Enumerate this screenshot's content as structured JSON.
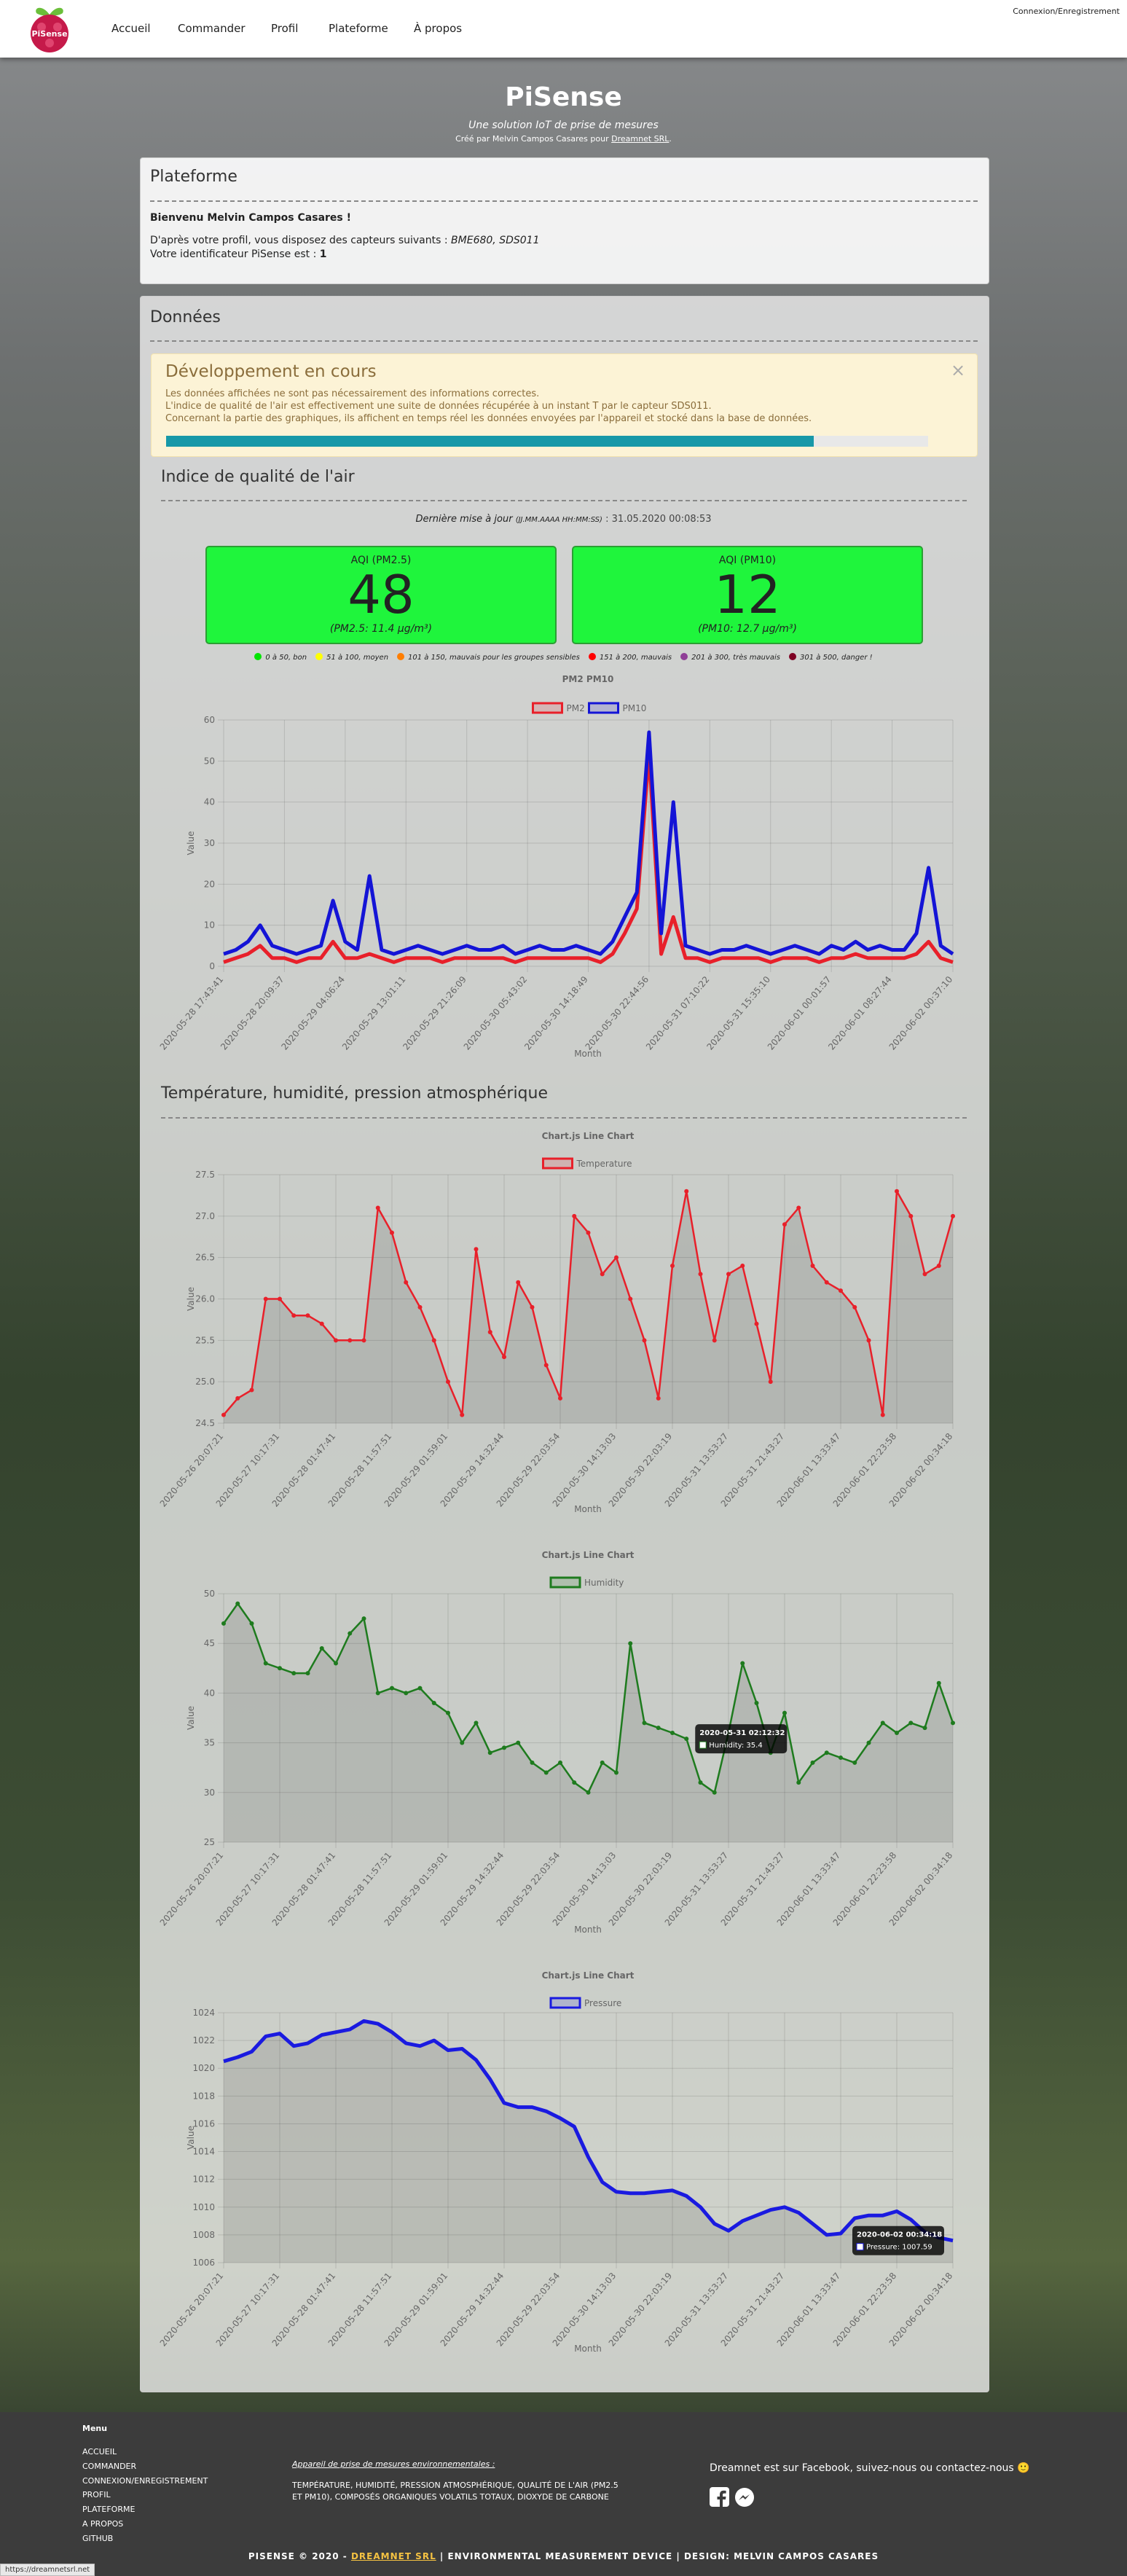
{
  "nav": {
    "logo_text": "PiSense",
    "items": [
      "Accueil",
      "Commander",
      "Profil",
      "Plateforme",
      "À propos"
    ],
    "login": "Connexion/Enregistrement"
  },
  "hero": {
    "title": "PiSense",
    "subtitle": "Une solution IoT de prise de mesures",
    "credit": "Créé par Melvin Campos Casares pour",
    "credit_link": "Dreamnet SRL",
    "credit_end": "."
  },
  "platform": {
    "title": "Plateforme",
    "welcome": "Bienvenu Melvin Campos Casares !",
    "sensors_intro": "D'après votre profil, vous disposez des capteurs suivants :",
    "sensors": "BME680, SDS011",
    "id_intro": "Votre identificateur PiSense est :",
    "id": 1
  },
  "data_panel": {
    "title": "Données",
    "alert": {
      "title": "Développement en cours",
      "close": "×",
      "progress": 85,
      "lines": [
        "Les données affichées ne sont pas nécessairement des informations correctes.",
        "L'indice de qualité de l'air est effectivement une suite de données récupérée à un instant T par le capteur SDS011.",
        "Concernant la partie des graphiques, ils affichent en temps réel les données envoyées par l'appareil et stocké dans la base de données."
      ]
    },
    "air_title": "Indice de qualité de l'air",
    "update_label": "Dernière mise à jour",
    "update_format": "(JJ.MM.AAAA HH:MM:SS)",
    "update_value": ": 31.05.2020 00:08:53",
    "aqi": [
      {
        "label": "AQI (PM2.5)",
        "value": 48,
        "detail": "(PM2.5: 11.4 µg/m³)"
      },
      {
        "label": "AQI (PM10)",
        "value": 12,
        "detail": "(PM10: 12.7 µg/m³)"
      }
    ],
    "aqi_legend": [
      {
        "label": "0 à 50, bon",
        "color": "#00e400"
      },
      {
        "label": "51 à 100, moyen",
        "color": "#ffff00"
      },
      {
        "label": "101 à 150, mauvais pour les groupes sensibles",
        "color": "#ff7e00"
      },
      {
        "label": "151 à 200, mauvais",
        "color": "#ff0000"
      },
      {
        "label": "201 à 300, très mauvais",
        "color": "#8f3f97"
      },
      {
        "label": "301 à 500, danger !",
        "color": "#7e0023"
      }
    ],
    "env_title": "Température, humidité, pression atmosphérique"
  },
  "chart_data": [
    {
      "type": "line",
      "title": "PM2 PM10",
      "x_label": "Month",
      "y_label": "Value",
      "fill": false,
      "points": false,
      "grid": true,
      "categories": [
        "2020-05-28 17:43:41",
        null,
        null,
        null,
        null,
        "2020-05-28 20:09:37",
        null,
        null,
        null,
        null,
        "2020-05-29 04:06:24",
        null,
        null,
        null,
        null,
        "2020-05-29 13:01:11",
        null,
        null,
        null,
        null,
        "2020-05-29 21:26:09",
        null,
        null,
        null,
        null,
        "2020-05-30 05:43:02",
        null,
        null,
        null,
        null,
        "2020-05-30 14:18:49",
        null,
        null,
        null,
        null,
        "2020-05-30 22:44:56",
        null,
        null,
        null,
        null,
        "2020-05-31 07:10:22",
        null,
        null,
        null,
        null,
        "2020-05-31 15:35:10",
        null,
        null,
        null,
        null,
        "2020-06-01 00:01:57",
        null,
        null,
        null,
        null,
        "2020-06-01 08:27:44",
        null,
        null,
        null,
        null,
        "2020-06-02 00:37:10"
      ],
      "series": [
        {
          "name": "PM2",
          "color": "#e8202a",
          "values": [
            1,
            2,
            3,
            5,
            2,
            2,
            1,
            2,
            2,
            6,
            2,
            2,
            3,
            2,
            1,
            2,
            2,
            2,
            1,
            2,
            2,
            2,
            2,
            2,
            1,
            2,
            2,
            2,
            2,
            2,
            2,
            1,
            3,
            8,
            14,
            52,
            3,
            12,
            2,
            2,
            1,
            2,
            2,
            2,
            2,
            1,
            2,
            2,
            2,
            1,
            2,
            2,
            3,
            2,
            2,
            2,
            2,
            3,
            6,
            2,
            1
          ]
        },
        {
          "name": "PM10",
          "color": "#1414d6",
          "values": [
            3,
            4,
            6,
            10,
            5,
            4,
            3,
            4,
            5,
            16,
            6,
            4,
            22,
            4,
            3,
            4,
            5,
            4,
            3,
            4,
            5,
            4,
            4,
            5,
            3,
            4,
            5,
            4,
            4,
            5,
            4,
            3,
            6,
            12,
            18,
            57,
            8,
            40,
            5,
            4,
            3,
            4,
            4,
            5,
            4,
            3,
            4,
            5,
            4,
            3,
            5,
            4,
            6,
            4,
            5,
            4,
            4,
            8,
            24,
            5,
            3
          ]
        }
      ],
      "ylim": [
        0,
        60
      ],
      "yticks": [
        0,
        10,
        20,
        30,
        40,
        50,
        60
      ]
    },
    {
      "type": "line",
      "title": "Chart.js Line Chart",
      "x_label": "Month",
      "y_label": "Value",
      "fill": true,
      "points": true,
      "grid": true,
      "categories": [
        "2020-05-26 20:07:21",
        null,
        null,
        null,
        "2020-05-27 10:17:31",
        null,
        null,
        null,
        "2020-05-28 01:47:41",
        null,
        null,
        null,
        "2020-05-28 11:57:51",
        null,
        null,
        null,
        "2020-05-29 01:59:01",
        null,
        null,
        null,
        "2020-05-29 14:32:44",
        null,
        null,
        null,
        "2020-05-29 22:03:54",
        null,
        null,
        null,
        "2020-05-30 14:13:03",
        null,
        null,
        null,
        "2020-05-30 22:03:19",
        null,
        null,
        null,
        "2020-05-31 13:53:27",
        null,
        null,
        null,
        "2020-05-31 21:43:27",
        null,
        null,
        null,
        "2020-06-01 13:33:47",
        null,
        null,
        null,
        "2020-06-01 22:23:58",
        null,
        null,
        null,
        "2020-06-02 00:34:18"
      ],
      "series": [
        {
          "name": "Temperature",
          "color": "#e8202a",
          "values": [
            24.6,
            24.8,
            24.9,
            26.0,
            26.0,
            25.8,
            25.8,
            25.7,
            25.5,
            25.5,
            25.5,
            27.1,
            26.8,
            26.2,
            25.9,
            25.5,
            25.0,
            24.6,
            26.6,
            25.6,
            25.3,
            26.2,
            25.9,
            25.2,
            24.8,
            27.0,
            26.8,
            26.3,
            26.5,
            26.0,
            25.5,
            24.8,
            26.4,
            27.3,
            26.3,
            25.5,
            26.3,
            26.4,
            25.7,
            25.0,
            26.9,
            27.1,
            26.4,
            26.2,
            26.1,
            25.9,
            25.5,
            24.6,
            27.3,
            27.0,
            26.3,
            26.4,
            27.0
          ]
        }
      ],
      "ylim": [
        24.5,
        27.5
      ],
      "yticks": [
        24.5,
        {
          "value": 25,
          "label": "25.0"
        },
        25.5,
        {
          "value": 26,
          "label": "26.0"
        },
        26.5,
        {
          "value": 27,
          "label": "27.0"
        },
        27.5
      ]
    },
    {
      "type": "line",
      "title": "Chart.js Line Chart",
      "x_label": "Month",
      "y_label": "Value",
      "fill": true,
      "points": true,
      "grid": true,
      "categories": [
        "2020-05-26 20:07:21",
        null,
        null,
        null,
        "2020-05-27 10:17:31",
        null,
        null,
        null,
        "2020-05-28 01:47:41",
        null,
        null,
        null,
        "2020-05-28 11:57:51",
        null,
        null,
        null,
        "2020-05-29 01:59:01",
        null,
        null,
        null,
        "2020-05-29 14:32:44",
        null,
        null,
        null,
        "2020-05-29 22:03:54",
        null,
        null,
        null,
        "2020-05-30 14:13:03",
        null,
        null,
        null,
        "2020-05-30 22:03:19",
        null,
        null,
        null,
        "2020-05-31 13:53:27",
        null,
        null,
        null,
        "2020-05-31 21:43:27",
        null,
        null,
        null,
        "2020-06-01 13:33:47",
        null,
        null,
        null,
        "2020-06-01 22:23:58",
        null,
        null,
        null,
        "2020-06-02 00:34:18"
      ],
      "series": [
        {
          "name": "Humidity",
          "color": "#1e7b1e",
          "values": [
            47,
            49,
            47,
            43,
            42.5,
            42,
            42,
            44.5,
            43,
            46,
            47.5,
            40,
            40.5,
            40,
            40.5,
            39,
            38,
            35,
            37,
            34,
            34.5,
            35,
            33,
            32,
            33,
            31,
            30,
            33,
            32,
            45,
            37,
            36.5,
            36,
            35.4,
            31,
            30,
            36,
            43,
            39,
            34,
            38,
            31,
            33,
            34,
            33.5,
            33,
            35,
            37,
            36,
            37,
            36.5,
            41,
            37
          ]
        }
      ],
      "ylim": [
        25,
        50
      ],
      "yticks": [
        25,
        30,
        35,
        40,
        45,
        50
      ],
      "tooltip": {
        "title": "2020-05-31 02:12:32",
        "label": "Humidity: 35.4"
      }
    },
    {
      "type": "line",
      "title": "Chart.js Line Chart",
      "x_label": "Month",
      "y_label": "Value",
      "fill": true,
      "points": false,
      "grid": true,
      "categories": [
        "2020-05-26 20:07:21",
        null,
        null,
        null,
        "2020-05-27 10:17:31",
        null,
        null,
        null,
        "2020-05-28 01:47:41",
        null,
        null,
        null,
        "2020-05-28 11:57:51",
        null,
        null,
        null,
        "2020-05-29 01:59:01",
        null,
        null,
        null,
        "2020-05-29 14:32:44",
        null,
        null,
        null,
        "2020-05-29 22:03:54",
        null,
        null,
        null,
        "2020-05-30 14:13:03",
        null,
        null,
        null,
        "2020-05-30 22:03:19",
        null,
        null,
        null,
        "2020-05-31 13:53:27",
        null,
        null,
        null,
        "2020-05-31 21:43:27",
        null,
        null,
        null,
        "2020-06-01 13:33:47",
        null,
        null,
        null,
        "2020-06-01 22:23:58",
        null,
        null,
        null,
        "2020-06-02 00:34:18"
      ],
      "series": [
        {
          "name": "Pressure",
          "color": "#1a1ae0",
          "values": [
            1020.5,
            1020.8,
            1021.2,
            1022.3,
            1022.5,
            1021.6,
            1021.8,
            1022.4,
            1022.6,
            1022.8,
            1023.4,
            1023.2,
            1022.6,
            1021.8,
            1021.6,
            1022,
            1021.3,
            1021.4,
            1020.6,
            1019.2,
            1017.5,
            1017.2,
            1017.2,
            1016.9,
            1016.4,
            1015.8,
            1013.6,
            1011.8,
            1011.1,
            1011,
            1011,
            1011.1,
            1011.2,
            1010.8,
            1010,
            1008.8,
            1008.3,
            1009,
            1009.4,
            1009.8,
            1010,
            1009.6,
            1008.8,
            1008,
            1008.1,
            1009.2,
            1009.4,
            1009.4,
            1009.7,
            1009.1,
            1008.2,
            1007.8,
            1007.59
          ]
        }
      ],
      "ylim": [
        1006,
        1024
      ],
      "yticks": [
        1006,
        1008,
        1010,
        1012,
        1014,
        1016,
        1018,
        1020,
        1022,
        1024
      ],
      "tooltip": {
        "title": "2020-06-02 00:34:18",
        "label": "Pressure: 1007.59"
      }
    }
  ],
  "footer": {
    "menu_title": "Menu",
    "menu": [
      "ACCUEIL",
      "COMMANDER",
      "CONNEXION/ENREGISTREMENT",
      "PROFIL",
      "PLATEFORME",
      "A PROPOS",
      "GITHUB"
    ],
    "device_title": "Appareil de prise de mesures environnementales :",
    "device_text": "TEMPÉRATURE, HUMIDITÉ, PRESSION ATMOSPHÉRIQUE, QUALITÉ DE L'AIR (PM2.5 ET PM10), COMPOSÉS ORGANIQUES VOLATILS TOTAUX, DIOXYDE DE CARBONE",
    "social": "Dreamnet est sur Facebook, suivez-nous ou contactez-nous 🙂",
    "bottom_start": "PISENSE © 2020 -",
    "bottom_link": "DREAMNET SRL",
    "bottom_end": "| ENVIRONMENTAL MEASUREMENT DEVICE | DESIGN: MELVIN CAMPOS CASARES"
  },
  "status_url": "https://dreamnetsrl.net"
}
